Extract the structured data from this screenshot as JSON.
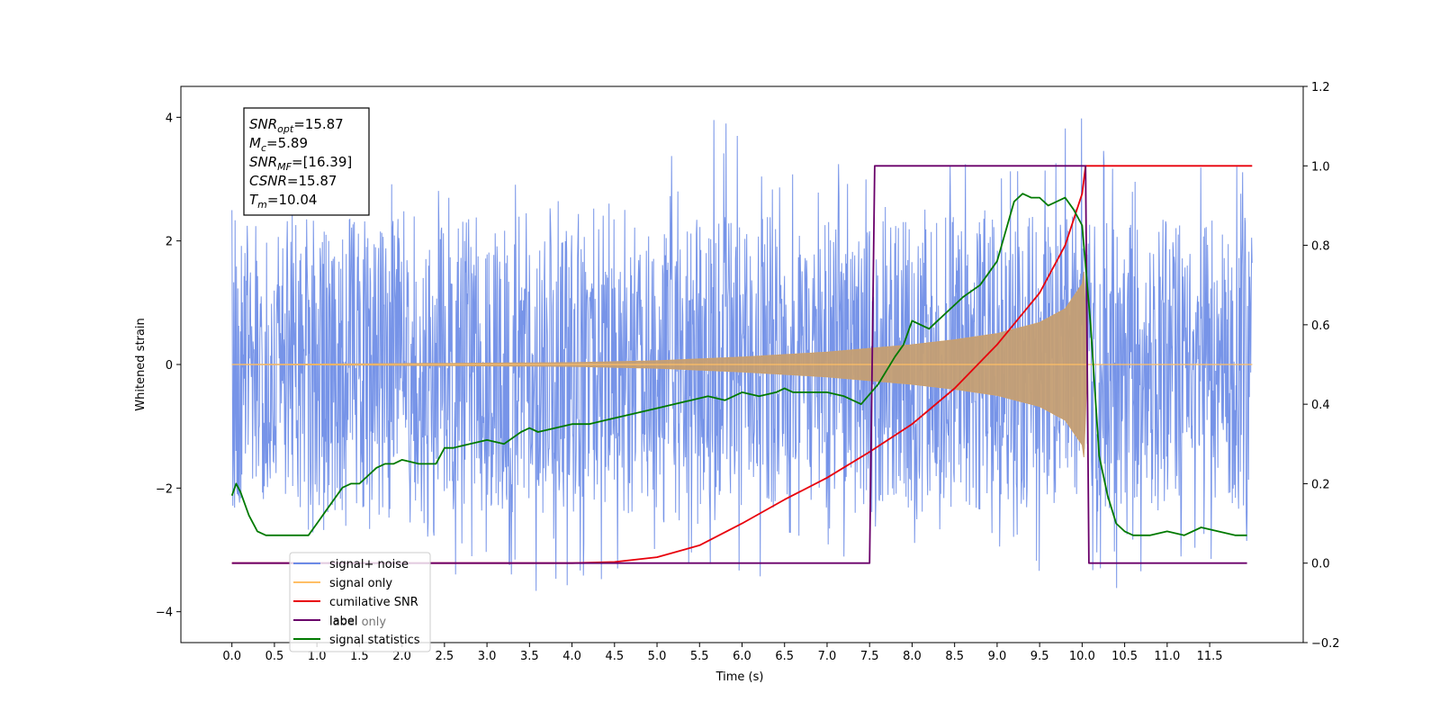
{
  "chart_data": {
    "type": "line",
    "xlabel": "Time (s)",
    "ylabel": "Whitened strain",
    "xlim": [
      -0.6,
      12.6
    ],
    "ylim_left": [
      -4.5,
      4.5
    ],
    "ylim_right": [
      -0.2,
      1.2
    ],
    "x_ticks": [
      0.0,
      0.5,
      1.0,
      1.5,
      2.0,
      2.5,
      3.0,
      3.5,
      4.0,
      4.5,
      5.0,
      5.5,
      6.0,
      6.5,
      7.0,
      7.5,
      8.0,
      8.5,
      9.0,
      9.5,
      10.0,
      10.5,
      11.0,
      11.5
    ],
    "x_tick_labels": [
      "0.0",
      "0.5",
      "1.0",
      "1.5",
      "2.0",
      "2.5",
      "3.0",
      "3.5",
      "4.0",
      "4.5",
      "5.0",
      "5.5",
      "6.0",
      "6.5",
      "7.0",
      "7.5",
      "8.0",
      "8.5",
      "9.0",
      "9.5",
      "10.0",
      "10.5",
      "11.0",
      "11.5"
    ],
    "y_left_ticks": [
      -4,
      -2,
      0,
      2,
      4
    ],
    "y_left_tick_labels": [
      "−4",
      "−2",
      "0",
      "2",
      "4"
    ],
    "y_right_ticks": [
      -0.2,
      0.0,
      0.2,
      0.4,
      0.6,
      0.8,
      1.0,
      1.2
    ],
    "y_right_tick_labels": [
      "−0.2",
      "0.0",
      "0.2",
      "0.4",
      "0.6",
      "0.8",
      "1.0",
      "1.2"
    ],
    "stats_box": {
      "lines": [
        {
          "main": "SNR",
          "sub": "opt",
          "rest": "=15.87"
        },
        {
          "main": "M",
          "sub": "c",
          "rest": "=5.89"
        },
        {
          "main": "SNR",
          "sub": "MF",
          "rest": "=[16.39]"
        },
        {
          "main": "CSNR",
          "sub": "",
          "rest": "=15.87"
        },
        {
          "main": "T",
          "sub": "m",
          "rest": "=10.04"
        }
      ]
    },
    "legend": {
      "placement": "lower-left",
      "entries": [
        {
          "label": "signal+ noise",
          "color": "#6b8be6"
        },
        {
          "label": "signal only",
          "color": "#ffbf66"
        },
        {
          "label": "cumilative SNR",
          "color": "#e8000b"
        },
        {
          "label": "label",
          "color": "#6a006a"
        },
        {
          "label": "signal statistics",
          "color": "#007a00"
        }
      ],
      "hidden_overlap_label": "label only"
    },
    "series": [
      {
        "name": "signal+ noise",
        "axis": "left",
        "color": "#6b8be6",
        "style": "dense-noise",
        "x_range": [
          0.0,
          12.0
        ],
        "envelope_upper": [
          [
            0.0,
            2.5
          ],
          [
            1.0,
            2.5
          ],
          [
            2.0,
            3.0
          ],
          [
            3.0,
            3.0
          ],
          [
            4.0,
            3.2
          ],
          [
            5.0,
            3.2
          ],
          [
            5.6,
            4.1
          ],
          [
            6.5,
            3.4
          ],
          [
            7.5,
            3.3
          ],
          [
            8.5,
            3.7
          ],
          [
            9.0,
            3.2
          ],
          [
            10.0,
            4.0
          ],
          [
            11.0,
            3.4
          ],
          [
            12.0,
            3.2
          ]
        ],
        "envelope_lower": [
          [
            0.0,
            -2.3
          ],
          [
            1.0,
            -2.8
          ],
          [
            2.0,
            -3.0
          ],
          [
            3.0,
            -3.7
          ],
          [
            4.0,
            -3.7
          ],
          [
            4.6,
            -3.6
          ],
          [
            5.5,
            -3.2
          ],
          [
            6.3,
            -3.6
          ],
          [
            7.0,
            -3.5
          ],
          [
            8.0,
            -3.0
          ],
          [
            9.0,
            -3.3
          ],
          [
            9.5,
            -3.7
          ],
          [
            10.0,
            -4.0
          ],
          [
            11.0,
            -3.2
          ],
          [
            11.5,
            -3.5
          ],
          [
            12.0,
            -3.0
          ]
        ]
      },
      {
        "name": "signal only",
        "axis": "left",
        "color": "#c9a070",
        "style": "chirp-envelope",
        "x": [
          0.0,
          4.0,
          5.0,
          6.0,
          7.0,
          8.0,
          8.5,
          9.0,
          9.5,
          9.8,
          10.0,
          10.03,
          10.05,
          12.0
        ],
        "amplitude": [
          0.0,
          0.03,
          0.06,
          0.12,
          0.2,
          0.32,
          0.4,
          0.5,
          0.68,
          0.9,
          1.3,
          1.6,
          0.0,
          0.0
        ]
      },
      {
        "name": "cumilative SNR",
        "axis": "right",
        "color": "#e8000b",
        "x": [
          0.0,
          4.0,
          4.5,
          5.0,
          5.5,
          6.0,
          6.5,
          7.0,
          7.5,
          8.0,
          8.5,
          9.0,
          9.5,
          9.8,
          10.0,
          10.04,
          12.0
        ],
        "values": [
          0.0,
          0.0,
          0.003,
          0.015,
          0.045,
          0.1,
          0.16,
          0.215,
          0.28,
          0.35,
          0.44,
          0.55,
          0.68,
          0.8,
          0.93,
          1.0,
          1.0
        ]
      },
      {
        "name": "label",
        "axis": "right",
        "color": "#6a006a",
        "x": [
          0.0,
          7.5,
          7.56,
          10.04,
          10.08,
          11.94
        ],
        "values": [
          0.0,
          0.0,
          1.0,
          1.0,
          0.0,
          0.0
        ]
      },
      {
        "name": "signal statistics",
        "axis": "right",
        "color": "#007a00",
        "x": [
          0.0,
          0.05,
          0.1,
          0.2,
          0.3,
          0.4,
          0.5,
          0.6,
          0.7,
          0.8,
          0.9,
          1.0,
          1.1,
          1.2,
          1.3,
          1.4,
          1.5,
          1.6,
          1.7,
          1.8,
          1.9,
          2.0,
          2.2,
          2.4,
          2.5,
          2.6,
          2.8,
          3.0,
          3.2,
          3.4,
          3.5,
          3.6,
          3.8,
          4.0,
          4.2,
          4.4,
          4.6,
          4.8,
          5.0,
          5.2,
          5.4,
          5.6,
          5.8,
          6.0,
          6.2,
          6.4,
          6.5,
          6.6,
          6.8,
          7.0,
          7.2,
          7.4,
          7.6,
          7.8,
          7.9,
          8.0,
          8.2,
          8.4,
          8.6,
          8.8,
          9.0,
          9.2,
          9.3,
          9.4,
          9.5,
          9.6,
          9.8,
          9.9,
          10.0,
          10.1,
          10.2,
          10.3,
          10.4,
          10.5,
          10.6,
          10.8,
          11.0,
          11.2,
          11.4,
          11.6,
          11.8,
          11.94
        ],
        "values": [
          0.17,
          0.2,
          0.18,
          0.12,
          0.08,
          0.07,
          0.07,
          0.07,
          0.07,
          0.07,
          0.07,
          0.1,
          0.13,
          0.16,
          0.19,
          0.2,
          0.2,
          0.22,
          0.24,
          0.25,
          0.25,
          0.26,
          0.25,
          0.25,
          0.29,
          0.29,
          0.3,
          0.31,
          0.3,
          0.33,
          0.34,
          0.33,
          0.34,
          0.35,
          0.35,
          0.36,
          0.37,
          0.38,
          0.39,
          0.4,
          0.41,
          0.42,
          0.41,
          0.43,
          0.42,
          0.43,
          0.44,
          0.43,
          0.43,
          0.43,
          0.42,
          0.4,
          0.45,
          0.52,
          0.55,
          0.61,
          0.59,
          0.63,
          0.67,
          0.7,
          0.76,
          0.91,
          0.93,
          0.92,
          0.92,
          0.9,
          0.92,
          0.89,
          0.85,
          0.6,
          0.27,
          0.17,
          0.1,
          0.08,
          0.07,
          0.07,
          0.08,
          0.07,
          0.09,
          0.08,
          0.07,
          0.07
        ]
      }
    ]
  }
}
